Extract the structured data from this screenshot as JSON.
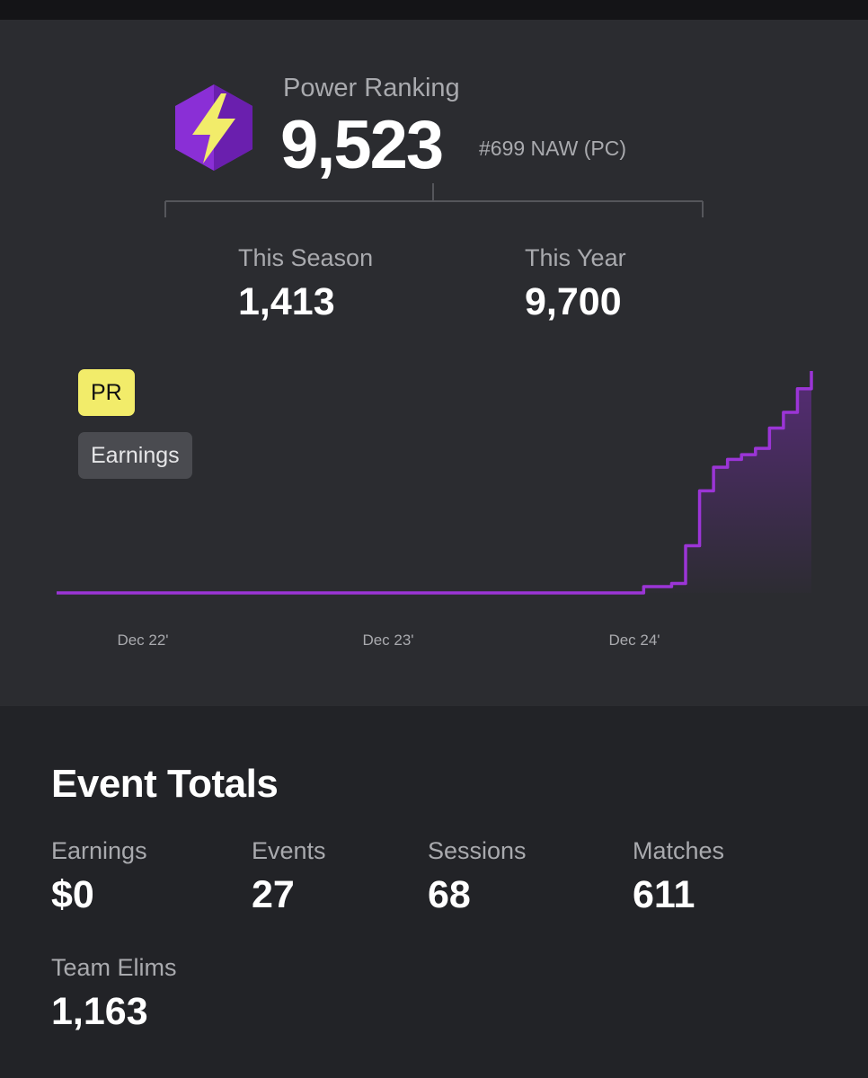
{
  "power_ranking": {
    "label": "Power Ranking",
    "value": "9,523",
    "rank": "#699 NAW (PC)",
    "icon": "lightning-hexagon-icon",
    "accent": "#8a2fd6"
  },
  "season": {
    "this_season_label": "This Season",
    "this_season_value": "1,413",
    "this_year_label": "This Year",
    "this_year_value": "9,700"
  },
  "chart_toggles": {
    "pr_label": "PR",
    "earnings_label": "Earnings",
    "pr_color": "#f2ec6a"
  },
  "chart_data": {
    "type": "area",
    "line_color": "#9b35d6",
    "x_tick_labels": [
      "Dec 22'",
      "Dec 23'",
      "Dec 24'"
    ],
    "x": [
      0,
      0.1,
      0.2,
      0.3,
      0.4,
      0.5,
      0.6,
      0.7,
      0.8,
      0.9,
      1.0,
      1.1,
      1.2,
      1.3,
      1.4,
      1.5,
      1.6,
      1.7,
      1.8,
      1.9,
      2.0,
      2.08,
      2.1,
      2.2,
      2.25,
      2.3,
      2.35,
      2.4,
      2.45,
      2.5,
      2.55,
      2.6,
      2.65,
      2.7
    ],
    "y": [
      0,
      0,
      0,
      0,
      0,
      0,
      0,
      0,
      0,
      0,
      0,
      0,
      0,
      0,
      0,
      0,
      0,
      0,
      0,
      0,
      0,
      0,
      40,
      60,
      300,
      650,
      800,
      850,
      880,
      920,
      1050,
      1150,
      1300,
      1413
    ],
    "grid": false,
    "legend": "none"
  },
  "totals": {
    "title": "Event Totals",
    "items": [
      {
        "label": "Earnings",
        "value": "$0"
      },
      {
        "label": "Events",
        "value": "27"
      },
      {
        "label": "Sessions",
        "value": "68"
      },
      {
        "label": "Matches",
        "value": "611"
      },
      {
        "label": "Team Elims",
        "value": "1,163"
      }
    ]
  }
}
